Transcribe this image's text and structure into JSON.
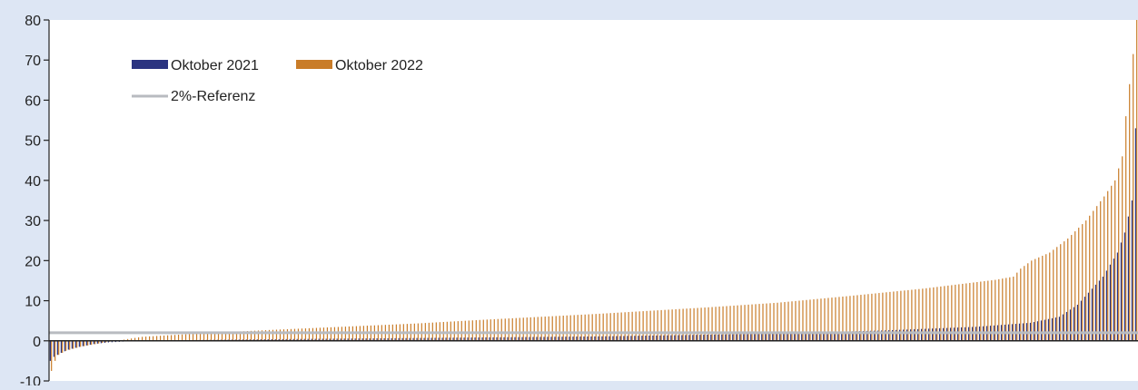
{
  "chart_data": {
    "type": "bar",
    "series_count_per_group": 2,
    "bar_count": 300,
    "ylim": [
      -10,
      80
    ],
    "yticks": [
      "80",
      "70",
      "60",
      "50",
      "40",
      "30",
      "20",
      "10",
      "0",
      "-10"
    ],
    "grid": false,
    "legend_position": "top-left",
    "legend": {
      "s2021": "Oktober 2021",
      "s2022": "Oktober 2022",
      "reference": "2%-Referenz"
    },
    "colors": {
      "s2021": "#2b3480",
      "s2022": "#c97c28",
      "reference": "#b8bbc0",
      "background": "#dde6f4",
      "plot": "#ffffff"
    },
    "reference_value": 2,
    "series": [
      {
        "name": "Oktober 2021",
        "anchors": [
          [
            0,
            -5
          ],
          [
            1,
            -4
          ],
          [
            2,
            -3.5
          ],
          [
            3,
            -3
          ],
          [
            5,
            -2.2
          ],
          [
            8,
            -1.5
          ],
          [
            12,
            -0.8
          ],
          [
            16,
            -0.4
          ],
          [
            22,
            -0.1
          ],
          [
            25,
            0
          ],
          [
            40,
            0.2
          ],
          [
            60,
            0.4
          ],
          [
            100,
            0.7
          ],
          [
            150,
            1.1
          ],
          [
            200,
            1.8
          ],
          [
            230,
            2.6
          ],
          [
            255,
            3.5
          ],
          [
            270,
            4.5
          ],
          [
            278,
            6
          ],
          [
            283,
            9
          ],
          [
            287,
            13
          ],
          [
            290,
            16
          ],
          [
            292,
            19
          ],
          [
            294,
            22
          ],
          [
            296,
            27
          ],
          [
            297,
            31
          ],
          [
            298,
            35
          ],
          [
            299,
            53
          ]
        ]
      },
      {
        "name": "Oktober 2022",
        "anchors": [
          [
            0,
            -7.5
          ],
          [
            1,
            -5
          ],
          [
            2,
            -3.5
          ],
          [
            4,
            -2.5
          ],
          [
            8,
            -1.5
          ],
          [
            14,
            -0.5
          ],
          [
            20,
            0.3
          ],
          [
            25,
            1
          ],
          [
            40,
            1.8
          ],
          [
            60,
            2.7
          ],
          [
            80,
            3.5
          ],
          [
            100,
            4.3
          ],
          [
            120,
            5.3
          ],
          [
            150,
            6.7
          ],
          [
            180,
            8.3
          ],
          [
            200,
            9.5
          ],
          [
            220,
            11.2
          ],
          [
            240,
            13
          ],
          [
            260,
            15.2
          ],
          [
            265,
            16
          ],
          [
            267,
            18
          ],
          [
            270,
            20
          ],
          [
            275,
            22
          ],
          [
            280,
            25.5
          ],
          [
            285,
            30
          ],
          [
            290,
            36
          ],
          [
            293,
            40
          ],
          [
            295,
            46
          ],
          [
            296,
            56
          ],
          [
            297,
            64
          ],
          [
            298,
            71.5
          ],
          [
            299,
            80
          ]
        ]
      }
    ]
  }
}
